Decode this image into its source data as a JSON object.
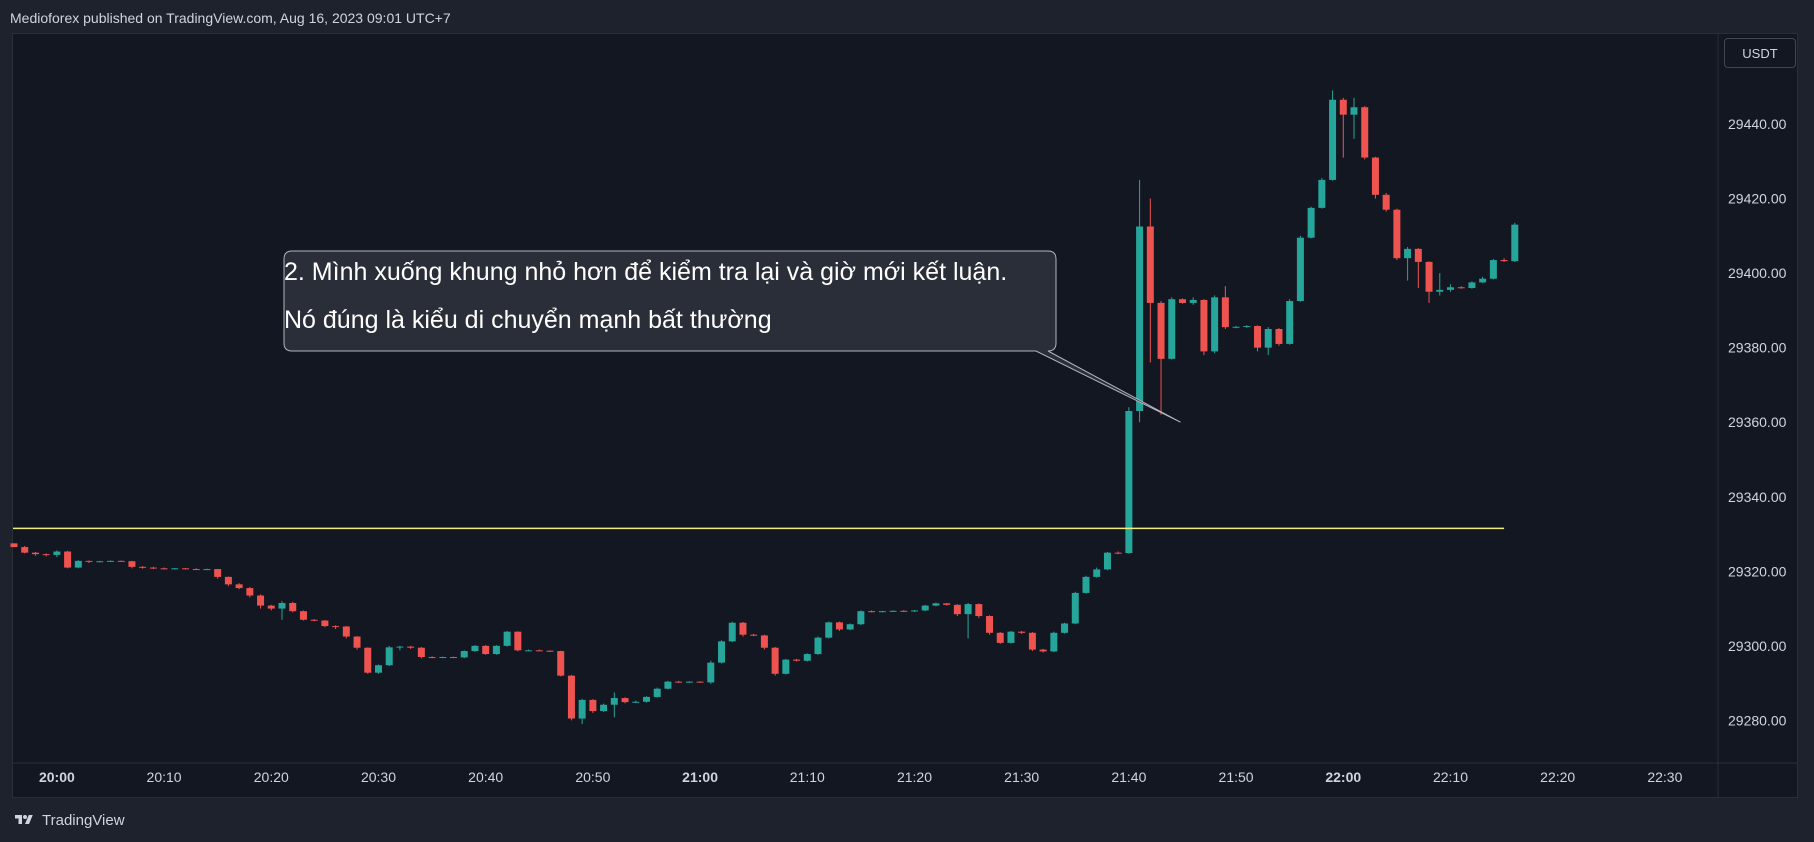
{
  "header": {
    "published": "Medioforex published on TradingView.com, Aug 16, 2023 09:01 UTC+7"
  },
  "footer": {
    "brand": "TradingView",
    "logo_icon": "tradingview-logo-icon"
  },
  "currency": "USDT",
  "colors": {
    "up": "#26a69a",
    "down": "#ef5350",
    "level": "#f0ee7a",
    "background": "#131722",
    "grid": "#2a2e39",
    "callout_bg": "#2a2e39",
    "callout_border": "#b2b5be"
  },
  "annotation": {
    "line1": "2. Mình xuống khung nhỏ hơn để kiểm tra lại và giờ mới kết luận.",
    "line2": "Nó đúng là kiểu di chuyển mạnh bất thường"
  },
  "chart_data": {
    "type": "candlestick",
    "timeframe_minutes": 1,
    "ylim": [
      29270,
      29480
    ],
    "y_ticks": [
      "29440.00",
      "29420.00",
      "29400.00",
      "29380.00",
      "29360.00",
      "29340.00",
      "29320.00",
      "29300.00",
      "29280.00"
    ],
    "x_ticks": [
      {
        "label": "20:00",
        "bold": true
      },
      {
        "label": "20:10",
        "bold": false
      },
      {
        "label": "20:20",
        "bold": false
      },
      {
        "label": "20:30",
        "bold": false
      },
      {
        "label": "20:40",
        "bold": false
      },
      {
        "label": "20:50",
        "bold": false
      },
      {
        "label": "21:00",
        "bold": true
      },
      {
        "label": "21:10",
        "bold": false
      },
      {
        "label": "21:20",
        "bold": false
      },
      {
        "label": "21:30",
        "bold": false
      },
      {
        "label": "21:40",
        "bold": false
      },
      {
        "label": "21:50",
        "bold": false
      },
      {
        "label": "22:00",
        "bold": true
      },
      {
        "label": "22:10",
        "bold": false
      },
      {
        "label": "22:20",
        "bold": false
      },
      {
        "label": "22:30",
        "bold": false
      }
    ],
    "horizontal_line": {
      "price": 29331.5,
      "from": "19:56",
      "to": "22:15"
    },
    "ohlc": [
      [
        29327.5,
        29327.5,
        29326.5,
        29326.5
      ],
      [
        29326.5,
        29326.8,
        29324.8,
        29325.0
      ],
      [
        29325.0,
        29325.2,
        29324.2,
        29324.6
      ],
      [
        29324.6,
        29324.8,
        29324.0,
        29324.4
      ],
      [
        29324.4,
        29325.6,
        29323.8,
        29325.3
      ],
      [
        29325.3,
        29325.5,
        29320.8,
        29321.0
      ],
      [
        29321.0,
        29323.0,
        29320.8,
        29322.8
      ],
      [
        29322.8,
        29322.9,
        29322.2,
        29322.6
      ],
      [
        29322.6,
        29322.8,
        29322.4,
        29322.7
      ],
      [
        29322.7,
        29322.9,
        29322.5,
        29322.8
      ],
      [
        29322.8,
        29322.9,
        29322.6,
        29322.7
      ],
      [
        29322.7,
        29322.8,
        29320.8,
        29321.2
      ],
      [
        29321.2,
        29321.4,
        29320.7,
        29321.0
      ],
      [
        29321.0,
        29321.2,
        29320.6,
        29320.8
      ],
      [
        29320.8,
        29321.0,
        29320.5,
        29320.7
      ],
      [
        29320.7,
        29320.9,
        29320.5,
        29320.8
      ],
      [
        29320.8,
        29320.9,
        29320.5,
        29320.6
      ],
      [
        29320.6,
        29320.8,
        29320.4,
        29320.5
      ],
      [
        29320.5,
        29320.7,
        29320.3,
        29320.6
      ],
      [
        29320.6,
        29320.6,
        29318.0,
        29318.5
      ],
      [
        29318.5,
        29318.6,
        29316.0,
        29316.5
      ],
      [
        29316.5,
        29316.8,
        29315.2,
        29315.5
      ],
      [
        29315.5,
        29315.8,
        29313.0,
        29313.5
      ],
      [
        29313.5,
        29313.8,
        29310.0,
        29310.8
      ],
      [
        29310.8,
        29311.0,
        29309.5,
        29310.0
      ],
      [
        29310.0,
        29312.0,
        29307.0,
        29311.5
      ],
      [
        29311.5,
        29311.8,
        29309.0,
        29309.3
      ],
      [
        29309.3,
        29309.5,
        29306.8,
        29307.0
      ],
      [
        29307.0,
        29307.2,
        29306.6,
        29306.8
      ],
      [
        29306.8,
        29306.9,
        29305.0,
        29305.3
      ],
      [
        29305.3,
        29305.5,
        29304.5,
        29305.2
      ],
      [
        29305.2,
        29305.3,
        29302.0,
        29302.5
      ],
      [
        29302.5,
        29302.6,
        29299.0,
        29299.5
      ],
      [
        29299.5,
        29299.6,
        29292.5,
        29292.8
      ],
      [
        29292.8,
        29295.0,
        29292.5,
        29294.8
      ],
      [
        29294.8,
        29300.0,
        29294.6,
        29299.6
      ],
      [
        29299.6,
        29300.0,
        29298.8,
        29299.8
      ],
      [
        29299.8,
        29300.0,
        29299.2,
        29299.5
      ],
      [
        29299.5,
        29299.7,
        29296.6,
        29297.0
      ],
      [
        29297.0,
        29297.2,
        29296.7,
        29296.9
      ],
      [
        29296.9,
        29297.1,
        29296.7,
        29297.0
      ],
      [
        29297.0,
        29297.1,
        29296.8,
        29296.9
      ],
      [
        29296.9,
        29298.8,
        29296.7,
        29298.6
      ],
      [
        29298.6,
        29300.2,
        29298.4,
        29300.0
      ],
      [
        29300.0,
        29300.2,
        29297.6,
        29297.8
      ],
      [
        29297.8,
        29300.2,
        29297.6,
        29300.0
      ],
      [
        29300.0,
        29304.0,
        29299.8,
        29303.8
      ],
      [
        29303.8,
        29303.9,
        29298.5,
        29298.8
      ],
      [
        29298.8,
        29299.0,
        29298.6,
        29298.8
      ],
      [
        29298.8,
        29299.0,
        29298.6,
        29298.7
      ],
      [
        29298.7,
        29298.8,
        29298.4,
        29298.6
      ],
      [
        29298.6,
        29298.7,
        29291.8,
        29292.0
      ],
      [
        29292.0,
        29292.2,
        29280.0,
        29280.5
      ],
      [
        29280.5,
        29285.8,
        29279.0,
        29285.5
      ],
      [
        29285.5,
        29285.7,
        29282.0,
        29282.5
      ],
      [
        29282.5,
        29284.5,
        29282.3,
        29284.2
      ],
      [
        29284.2,
        29287.5,
        29280.8,
        29286.0
      ],
      [
        29286.0,
        29286.2,
        29284.6,
        29284.9
      ],
      [
        29284.9,
        29285.3,
        29284.7,
        29285.0
      ],
      [
        29285.0,
        29286.5,
        29284.8,
        29286.3
      ],
      [
        29286.3,
        29288.8,
        29286.1,
        29288.5
      ],
      [
        29288.5,
        29290.6,
        29288.3,
        29290.4
      ],
      [
        29290.4,
        29290.6,
        29290.1,
        29290.3
      ],
      [
        29290.3,
        29290.5,
        29290.1,
        29290.4
      ],
      [
        29290.4,
        29290.5,
        29290.1,
        29290.2
      ],
      [
        29290.2,
        29296.0,
        29289.8,
        29295.5
      ],
      [
        29295.5,
        29301.5,
        29295.3,
        29301.2
      ],
      [
        29301.2,
        29306.5,
        29301.0,
        29306.2
      ],
      [
        29306.2,
        29306.4,
        29302.5,
        29303.0
      ],
      [
        29303.0,
        29303.2,
        29302.6,
        29302.8
      ],
      [
        29302.8,
        29303.0,
        29299.0,
        29299.5
      ],
      [
        29299.5,
        29299.7,
        29292.0,
        29292.5
      ],
      [
        29292.5,
        29296.5,
        29292.3,
        29296.3
      ],
      [
        29296.3,
        29296.5,
        29295.8,
        29296.0
      ],
      [
        29296.0,
        29298.0,
        29295.8,
        29297.8
      ],
      [
        29297.8,
        29302.5,
        29297.6,
        29302.2
      ],
      [
        29302.2,
        29306.5,
        29302.0,
        29306.3
      ],
      [
        29306.3,
        29306.5,
        29304.0,
        29304.4
      ],
      [
        29304.4,
        29306.0,
        29304.2,
        29305.8
      ],
      [
        29305.8,
        29309.5,
        29305.6,
        29309.3
      ],
      [
        29309.3,
        29309.5,
        29309.0,
        29309.2
      ],
      [
        29309.2,
        29309.4,
        29309.0,
        29309.3
      ],
      [
        29309.3,
        29309.5,
        29309.1,
        29309.4
      ],
      [
        29309.4,
        29309.6,
        29309.2,
        29309.3
      ],
      [
        29309.3,
        29309.6,
        29309.1,
        29309.5
      ],
      [
        29309.5,
        29311.0,
        29309.3,
        29310.8
      ],
      [
        29310.8,
        29311.6,
        29310.6,
        29311.4
      ],
      [
        29311.4,
        29311.5,
        29310.8,
        29311.0
      ],
      [
        29311.0,
        29311.2,
        29308.0,
        29308.5
      ],
      [
        29308.5,
        29311.5,
        29302.0,
        29311.2
      ],
      [
        29311.2,
        29311.4,
        29307.5,
        29308.0
      ],
      [
        29308.0,
        29308.2,
        29303.0,
        29303.5
      ],
      [
        29303.5,
        29303.7,
        29300.5,
        29300.8
      ],
      [
        29300.8,
        29304.0,
        29300.6,
        29303.8
      ],
      [
        29303.8,
        29304.0,
        29303.2,
        29303.5
      ],
      [
        29303.5,
        29303.7,
        29298.6,
        29299.0
      ],
      [
        29299.0,
        29299.2,
        29298.2,
        29298.5
      ],
      [
        29298.5,
        29303.8,
        29298.3,
        29303.5
      ],
      [
        29303.5,
        29306.2,
        29303.3,
        29306.0
      ],
      [
        29306.0,
        29314.5,
        29305.8,
        29314.2
      ],
      [
        29314.2,
        29318.8,
        29314.0,
        29318.5
      ],
      [
        29318.5,
        29321.0,
        29318.3,
        29320.5
      ],
      [
        29320.5,
        29325.2,
        29320.3,
        29325.0
      ],
      [
        29325.0,
        29325.3,
        29324.6,
        29324.9
      ],
      [
        29324.9,
        29364.0,
        29324.7,
        29363.0
      ],
      [
        29363.0,
        29425.0,
        29360.0,
        29412.5
      ],
      [
        29412.5,
        29420.0,
        29376.0,
        29392.0
      ],
      [
        29392.0,
        29392.5,
        29362.0,
        29377.0
      ],
      [
        29377.0,
        29393.5,
        29376.8,
        29393.0
      ],
      [
        29393.0,
        29393.2,
        29391.8,
        29392.0
      ],
      [
        29392.0,
        29393.5,
        29391.5,
        29392.8
      ],
      [
        29392.8,
        29393.0,
        29378.0,
        29379.0
      ],
      [
        29379.0,
        29394.0,
        29378.5,
        29393.5
      ],
      [
        29393.5,
        29396.5,
        29385.0,
        29385.5
      ],
      [
        29385.5,
        29385.8,
        29385.2,
        29385.6
      ],
      [
        29385.6,
        29386.0,
        29385.3,
        29385.8
      ],
      [
        29385.8,
        29386.0,
        29379.0,
        29380.0
      ],
      [
        29380.0,
        29385.5,
        29378.0,
        29385.0
      ],
      [
        29385.0,
        29385.3,
        29380.5,
        29381.0
      ],
      [
        29381.0,
        29393.0,
        29380.8,
        29392.5
      ],
      [
        29392.5,
        29410.0,
        29392.3,
        29409.5
      ],
      [
        29409.5,
        29417.8,
        29409.3,
        29417.5
      ],
      [
        29417.5,
        29425.5,
        29417.3,
        29425.0
      ],
      [
        29425.0,
        29449.0,
        29424.8,
        29446.5
      ],
      [
        29446.5,
        29447.0,
        29431.0,
        29442.5
      ],
      [
        29442.5,
        29447.0,
        29436.0,
        29444.5
      ],
      [
        29444.5,
        29444.8,
        29430.5,
        29431.0
      ],
      [
        29431.0,
        29431.2,
        29420.0,
        29421.0
      ],
      [
        29421.0,
        29421.5,
        29416.5,
        29417.0
      ],
      [
        29417.0,
        29417.3,
        29403.5,
        29404.0
      ],
      [
        29404.0,
        29407.0,
        29398.0,
        29406.5
      ],
      [
        29406.5,
        29406.7,
        29396.0,
        29403.0
      ],
      [
        29403.0,
        29403.2,
        29392.0,
        29395.0
      ],
      [
        29395.0,
        29400.0,
        29394.0,
        29395.5
      ],
      [
        29395.5,
        29397.0,
        29395.0,
        29396.2
      ],
      [
        29396.2,
        29396.5,
        29395.8,
        29396.0
      ],
      [
        29396.0,
        29397.8,
        29395.8,
        29397.5
      ],
      [
        29397.5,
        29399.0,
        29397.3,
        29398.5
      ],
      [
        29398.5,
        29403.8,
        29398.3,
        29403.5
      ],
      [
        29403.5,
        29404.0,
        29403.0,
        29403.2
      ],
      [
        29403.2,
        29413.5,
        29403.0,
        29413.0
      ]
    ]
  }
}
